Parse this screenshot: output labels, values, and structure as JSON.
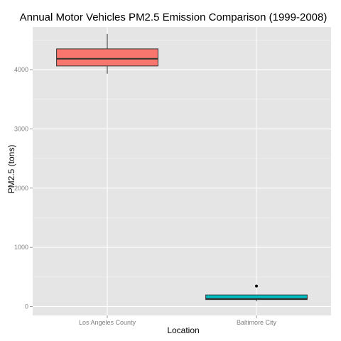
{
  "chart_data": {
    "type": "boxplot",
    "title": "Annual Motor Vehicles PM2.5 Emission Comparison (1999-2008)",
    "xlabel": "Location",
    "ylabel": "PM2.5 (tons)",
    "categories": [
      "Los Angeles County",
      "Baltimore City"
    ],
    "ylim": [
      -150,
      4720
    ],
    "yticks": [
      0,
      1000,
      2000,
      3000,
      4000
    ],
    "grid": true,
    "legend": "none",
    "boxes": [
      {
        "category": "Los Angeles County",
        "fill": "#f8766d",
        "min": 3931,
        "q1": 4062,
        "median": 4183,
        "q3": 4350,
        "max": 4601,
        "outliers": []
      },
      {
        "category": "Baltimore City",
        "fill": "#00bfc4",
        "min": 88,
        "q1": 118,
        "median": 131,
        "q3": 196,
        "max": 196,
        "outliers": [
          347
        ]
      }
    ],
    "colors": {
      "panel_background": "#e5e5e5",
      "grid_major": "#ffffff",
      "grid_minor": "#f2f2f2",
      "outline": "#333333",
      "tick_text": "#7f7f7f"
    }
  }
}
